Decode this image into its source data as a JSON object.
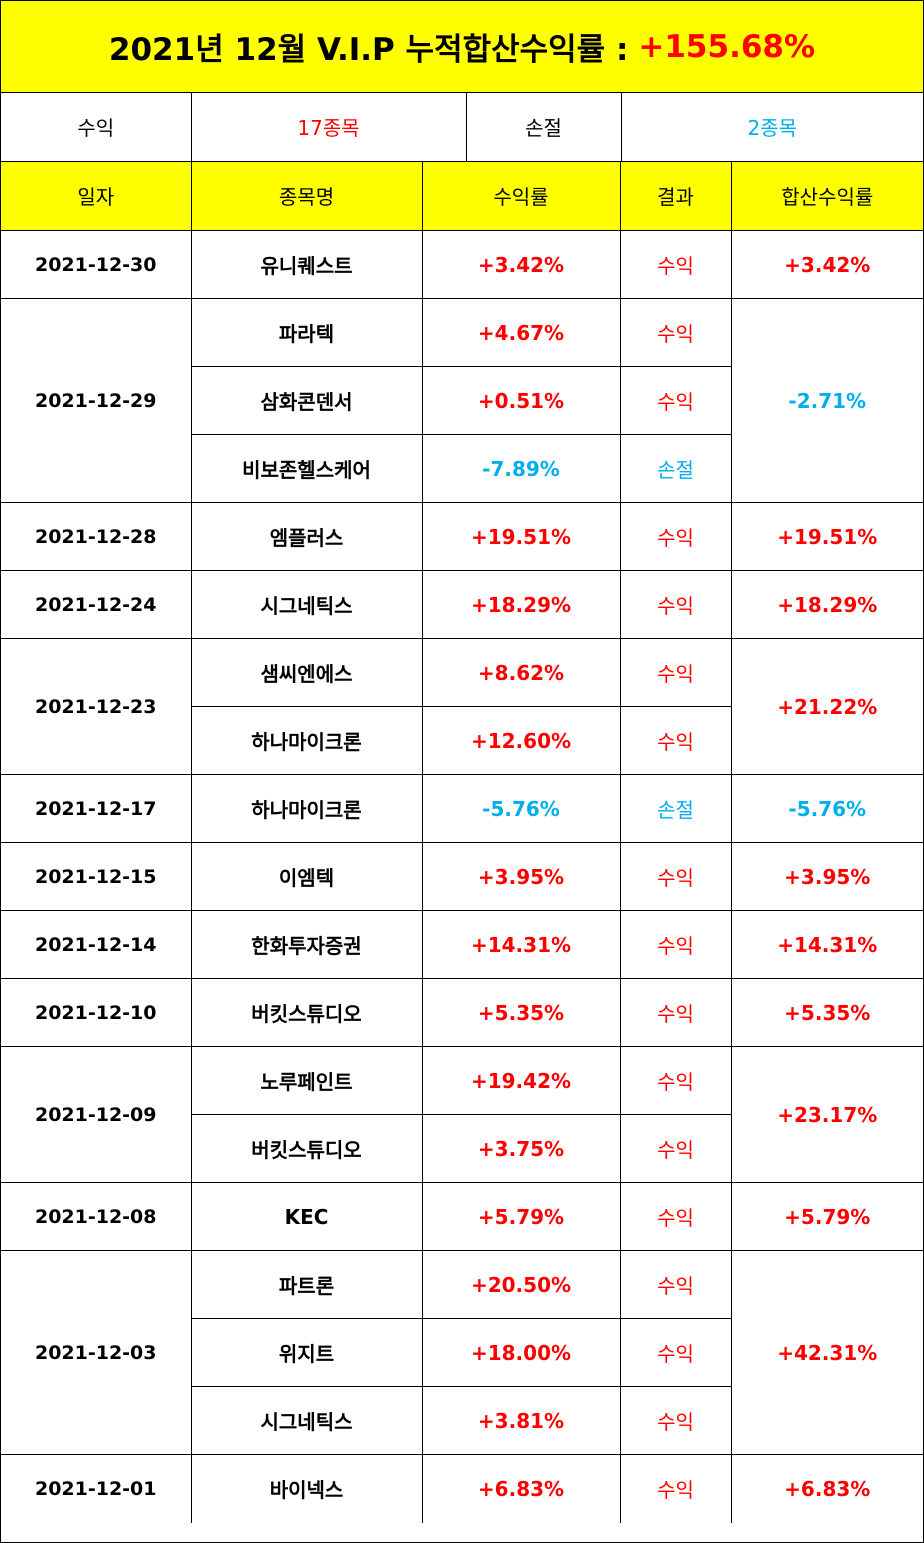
{
  "title": {
    "text": "2021년 12월 V.I.P 누적합산수익률 :",
    "total": "+155.68%",
    "total_color": "#ff0000"
  },
  "summary": {
    "profit_label": "수익",
    "profit_count": "17종목",
    "loss_label": "손절",
    "loss_count": "2종목"
  },
  "headers": {
    "date": "일자",
    "stock": "종목명",
    "rate": "수익률",
    "result": "결과",
    "combined": "합산수익률"
  },
  "colors": {
    "header_bg": "#ffff00",
    "profit": "#ff0000",
    "loss": "#00aeef"
  },
  "groups": [
    {
      "date": "2021-12-30",
      "combined": "+3.42%",
      "rows": [
        {
          "stock": "유니퀘스트",
          "rate": "+3.42%",
          "result": "수익"
        }
      ]
    },
    {
      "date": "2021-12-29",
      "combined": "-2.71%",
      "rows": [
        {
          "stock": "파라텍",
          "rate": "+4.67%",
          "result": "수익"
        },
        {
          "stock": "삼화콘덴서",
          "rate": "+0.51%",
          "result": "수익"
        },
        {
          "stock": "비보존헬스케어",
          "rate": "-7.89%",
          "result": "손절"
        }
      ]
    },
    {
      "date": "2021-12-28",
      "combined": "+19.51%",
      "rows": [
        {
          "stock": "엠플러스",
          "rate": "+19.51%",
          "result": "수익"
        }
      ]
    },
    {
      "date": "2021-12-24",
      "combined": "+18.29%",
      "rows": [
        {
          "stock": "시그네틱스",
          "rate": "+18.29%",
          "result": "수익"
        }
      ]
    },
    {
      "date": "2021-12-23",
      "combined": "+21.22%",
      "rows": [
        {
          "stock": "샘씨엔에스",
          "rate": "+8.62%",
          "result": "수익"
        },
        {
          "stock": "하나마이크론",
          "rate": "+12.60%",
          "result": "수익"
        }
      ]
    },
    {
      "date": "2021-12-17",
      "combined": "-5.76%",
      "rows": [
        {
          "stock": "하나마이크론",
          "rate": "-5.76%",
          "result": "손절"
        }
      ]
    },
    {
      "date": "2021-12-15",
      "combined": "+3.95%",
      "rows": [
        {
          "stock": "이엠텍",
          "rate": "+3.95%",
          "result": "수익"
        }
      ]
    },
    {
      "date": "2021-12-14",
      "combined": "+14.31%",
      "rows": [
        {
          "stock": "한화투자증권",
          "rate": "+14.31%",
          "result": "수익"
        }
      ]
    },
    {
      "date": "2021-12-10",
      "combined": "+5.35%",
      "rows": [
        {
          "stock": "버킷스튜디오",
          "rate": "+5.35%",
          "result": "수익"
        }
      ]
    },
    {
      "date": "2021-12-09",
      "combined": "+23.17%",
      "rows": [
        {
          "stock": "노루페인트",
          "rate": "+19.42%",
          "result": "수익"
        },
        {
          "stock": "버킷스튜디오",
          "rate": "+3.75%",
          "result": "수익"
        }
      ]
    },
    {
      "date": "2021-12-08",
      "combined": "+5.79%",
      "rows": [
        {
          "stock": "KEC",
          "rate": "+5.79%",
          "result": "수익"
        }
      ]
    },
    {
      "date": "2021-12-03",
      "combined": "+42.31%",
      "rows": [
        {
          "stock": "파트론",
          "rate": "+20.50%",
          "result": "수익"
        },
        {
          "stock": "위지트",
          "rate": "+18.00%",
          "result": "수익"
        },
        {
          "stock": "시그네틱스",
          "rate": "+3.81%",
          "result": "수익"
        }
      ]
    },
    {
      "date": "2021-12-01",
      "combined": "+6.83%",
      "rows": [
        {
          "stock": "바이넥스",
          "rate": "+6.83%",
          "result": "수익"
        }
      ]
    }
  ]
}
